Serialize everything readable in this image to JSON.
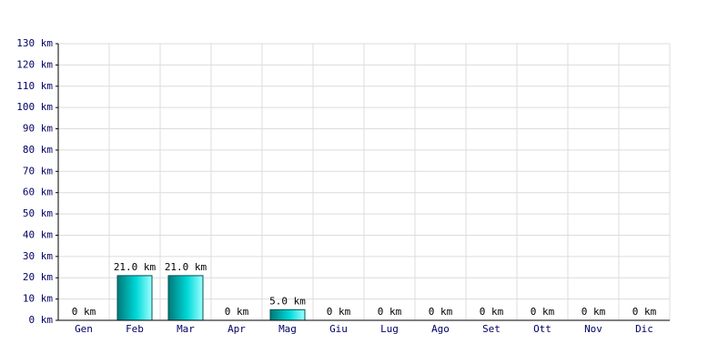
{
  "chart_data": {
    "type": "bar",
    "categories": [
      "Gen",
      "Feb",
      "Mar",
      "Apr",
      "Mag",
      "Giu",
      "Lug",
      "Ago",
      "Set",
      "Ott",
      "Nov",
      "Dic"
    ],
    "values": [
      0,
      21,
      21,
      0,
      5,
      0,
      0,
      0,
      0,
      0,
      0,
      0
    ],
    "value_labels": [
      "0 km",
      "21.0 km",
      "21.0 km",
      "0 km",
      "5.0 km",
      "0 km",
      "0 km",
      "0 km",
      "0 km",
      "0 km",
      "0 km",
      "0 km"
    ],
    "color": "#00d8d8",
    "ylim": [
      0,
      130
    ],
    "yticks": [
      {
        "value": 0,
        "label": "0 km"
      },
      {
        "value": 10,
        "label": "10 km"
      },
      {
        "value": 20,
        "label": "20 km"
      },
      {
        "value": 30,
        "label": "30 km"
      },
      {
        "value": 40,
        "label": "40 km"
      },
      {
        "value": 50,
        "label": "50 km"
      },
      {
        "value": 60,
        "label": "60 km"
      },
      {
        "value": 70,
        "label": "70 km"
      },
      {
        "value": 80,
        "label": "80 km"
      },
      {
        "value": 90,
        "label": "90 km"
      },
      {
        "value": 100,
        "label": "100 km"
      },
      {
        "value": 110,
        "label": "110 km"
      },
      {
        "value": 120,
        "label": "120 km"
      },
      {
        "value": 130,
        "label": "130 km"
      }
    ],
    "grid": true
  }
}
